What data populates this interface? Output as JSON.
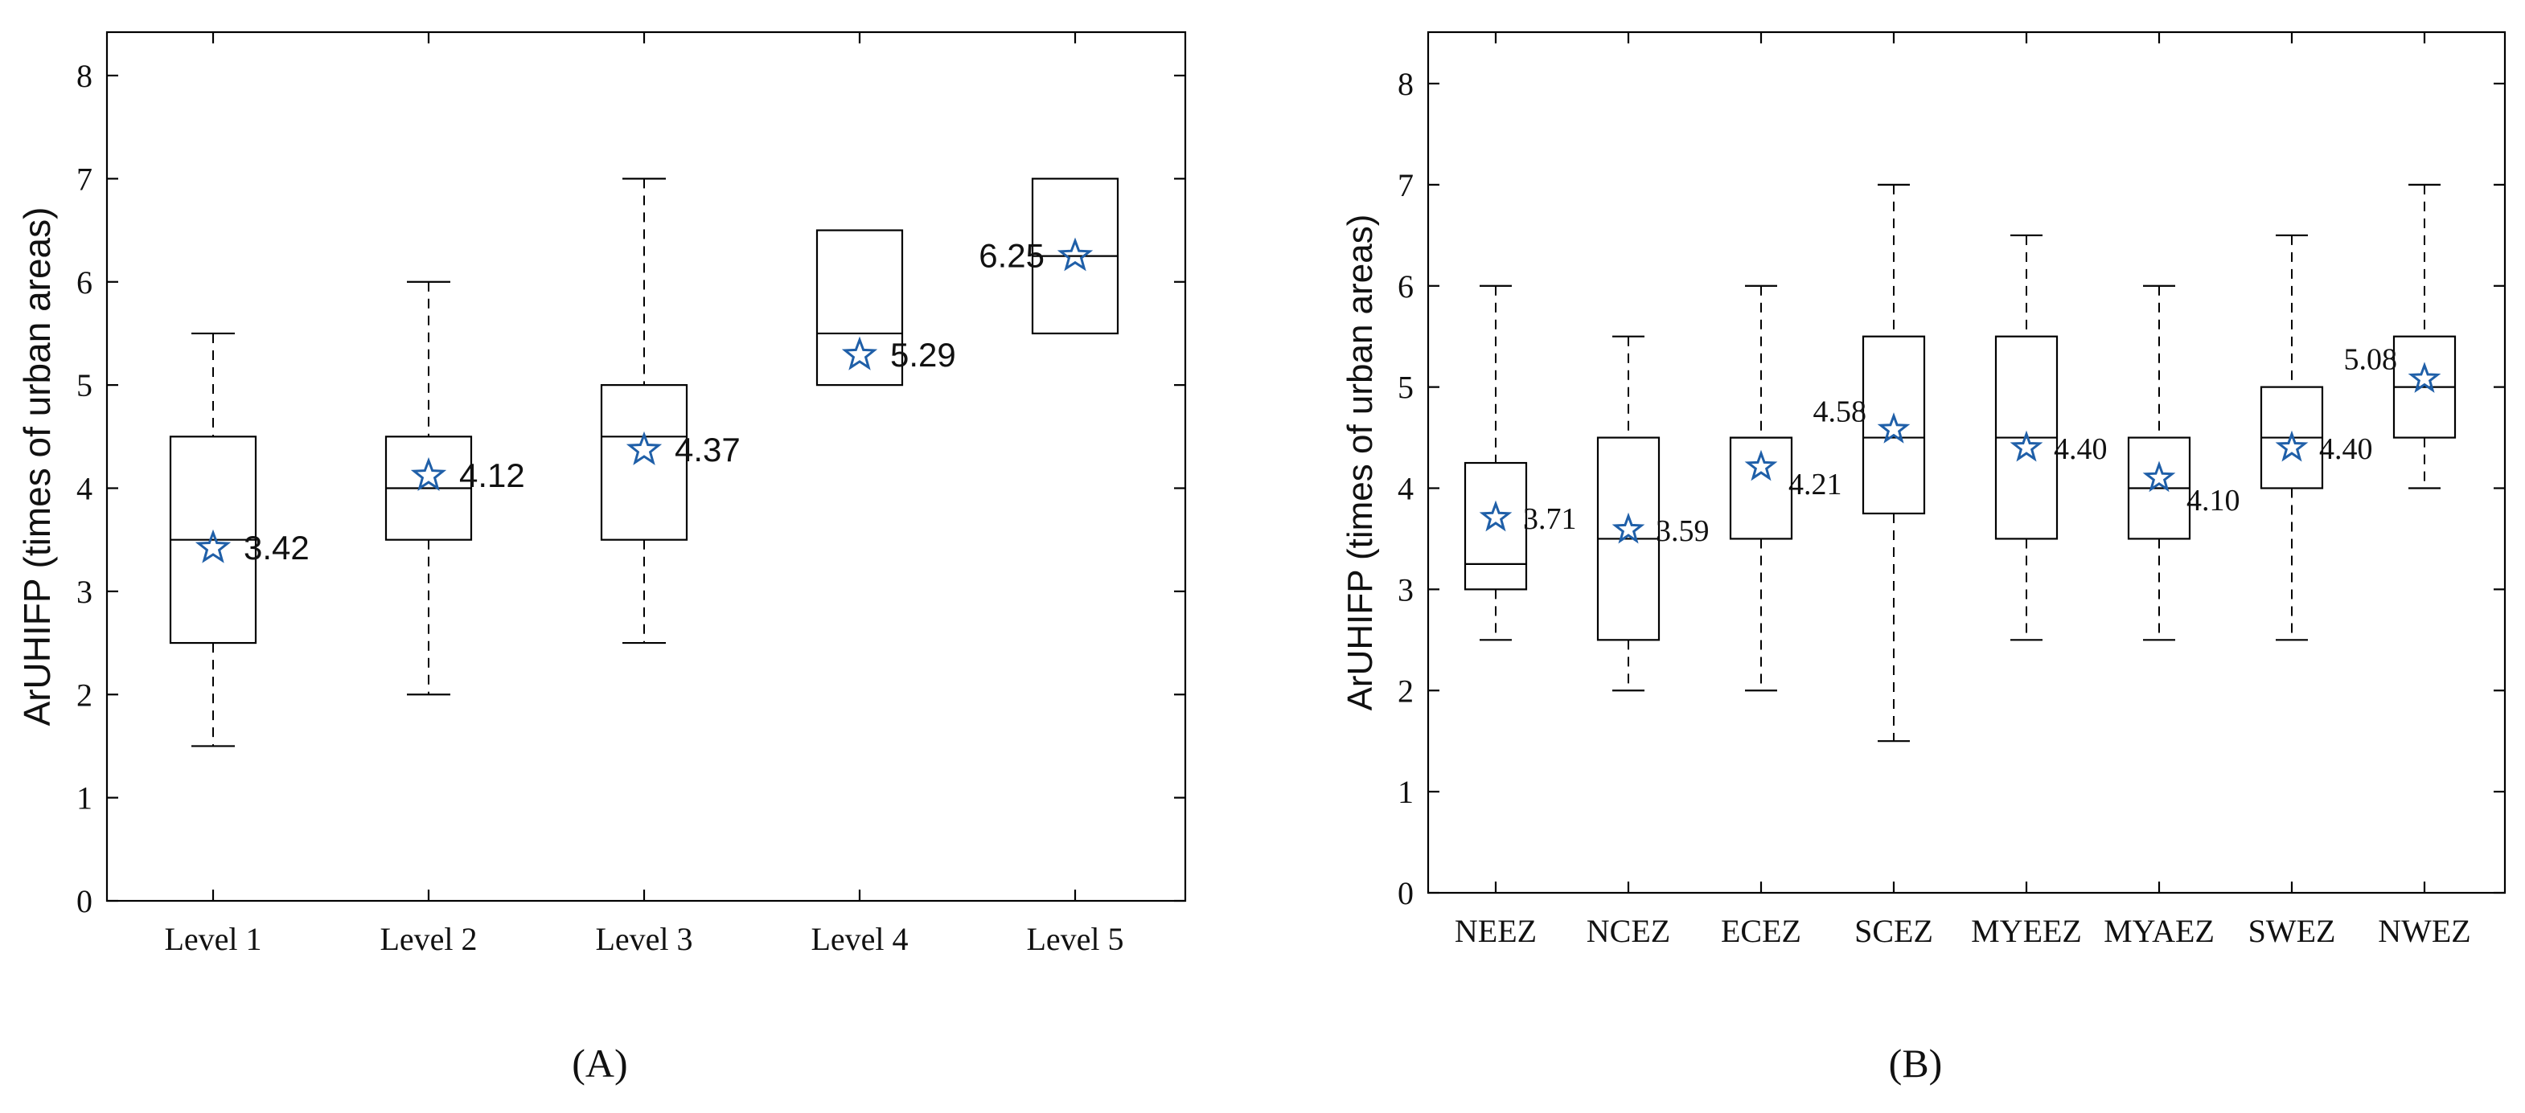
{
  "chart_data": [
    {
      "type": "box",
      "panel_label": "(A)",
      "ylabel": "ArUHIFP (times of urban areas)",
      "xlabel": "",
      "ylim": [
        0,
        8.5
      ],
      "yticks": [
        0,
        1,
        2,
        3,
        4,
        5,
        6,
        7,
        8
      ],
      "grid": false,
      "mean_marker": "star",
      "categories": [
        "Level 1",
        "Level 2",
        "Level 3",
        "Level 4",
        "Level 5"
      ],
      "boxes": [
        {
          "whisker_low": 1.5,
          "q1": 2.5,
          "median": 3.5,
          "q3": 4.5,
          "whisker_high": 5.5,
          "mean": 3.42,
          "mean_label": "3.42",
          "label_side": "right"
        },
        {
          "whisker_low": 2.0,
          "q1": 3.5,
          "median": 4.0,
          "q3": 4.5,
          "whisker_high": 6.0,
          "mean": 4.12,
          "mean_label": "4.12",
          "label_side": "right"
        },
        {
          "whisker_low": 2.5,
          "q1": 3.5,
          "median": 4.5,
          "q3": 5.0,
          "whisker_high": 7.0,
          "mean": 4.37,
          "mean_label": "4.37",
          "label_side": "right"
        },
        {
          "whisker_low": 5.0,
          "q1": 5.0,
          "median": 5.5,
          "q3": 6.5,
          "whisker_high": 6.5,
          "mean": 5.29,
          "mean_label": "5.29",
          "label_side": "right"
        },
        {
          "whisker_low": 5.5,
          "q1": 5.5,
          "median": 6.25,
          "q3": 7.0,
          "whisker_high": 7.0,
          "mean": 6.25,
          "mean_label": "6.25",
          "label_side": "left"
        }
      ]
    },
    {
      "type": "box",
      "panel_label": "(B)",
      "ylabel": "ArUHIFP (times of urban areas)",
      "xlabel": "",
      "ylim": [
        0,
        8.5
      ],
      "yticks": [
        0,
        1,
        2,
        3,
        4,
        5,
        6,
        7,
        8
      ],
      "grid": false,
      "mean_marker": "star",
      "categories": [
        "NEEZ",
        "NCEZ",
        "ECEZ",
        "SCEZ",
        "MYEEZ",
        "MYAEZ",
        "SWEZ",
        "NWEZ"
      ],
      "boxes": [
        {
          "whisker_low": 2.5,
          "q1": 3.0,
          "median": 3.25,
          "q3": 4.25,
          "whisker_high": 6.0,
          "mean": 3.71,
          "mean_label": "3.71",
          "label_side": "right"
        },
        {
          "whisker_low": 2.0,
          "q1": 2.5,
          "median": 3.5,
          "q3": 4.5,
          "whisker_high": 5.5,
          "mean": 3.59,
          "mean_label": "3.59",
          "label_side": "right"
        },
        {
          "whisker_low": 2.0,
          "q1": 3.5,
          "median": 4.5,
          "q3": 4.5,
          "whisker_high": 6.0,
          "mean": 4.21,
          "mean_label": "4.21",
          "label_side": "right"
        },
        {
          "whisker_low": 1.5,
          "q1": 3.75,
          "median": 4.5,
          "q3": 5.5,
          "whisker_high": 7.0,
          "mean": 4.58,
          "mean_label": "4.58",
          "label_side": "left"
        },
        {
          "whisker_low": 2.5,
          "q1": 3.5,
          "median": 4.5,
          "q3": 5.5,
          "whisker_high": 6.5,
          "mean": 4.4,
          "mean_label": "4.40",
          "label_side": "right"
        },
        {
          "whisker_low": 2.5,
          "q1": 3.5,
          "median": 4.0,
          "q3": 4.5,
          "whisker_high": 6.0,
          "mean": 4.1,
          "mean_label": "4.10",
          "label_side": "right"
        },
        {
          "whisker_low": 2.5,
          "q1": 4.0,
          "median": 4.5,
          "q3": 5.0,
          "whisker_high": 6.5,
          "mean": 4.4,
          "mean_label": "4.40",
          "label_side": "right"
        },
        {
          "whisker_low": 4.0,
          "q1": 4.5,
          "median": 5.0,
          "q3": 5.5,
          "whisker_high": 7.0,
          "mean": 5.08,
          "mean_label": "5.08",
          "label_side": "left"
        }
      ]
    }
  ]
}
